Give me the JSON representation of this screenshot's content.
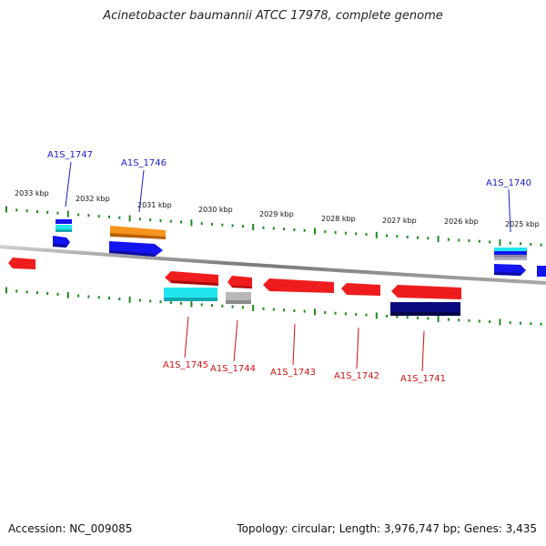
{
  "header": {
    "title": "Acinetobacter baumannii ATCC 17978, complete genome"
  },
  "footer": {
    "accession": "Accession: NC_009085",
    "summary": "Topology: circular; Length: 3,976,747 bp; Genes: 3,435"
  },
  "kbp_labels": [
    "2033 kbp",
    "2032 kbp",
    "2031 kbp",
    "2030 kbp",
    "2029 kbp",
    "2028 kbp",
    "2027 kbp",
    "2026 kbp",
    "2025 kbp"
  ],
  "genes_top": [
    "A1S_1747",
    "A1S_1746",
    "A1S_1740"
  ],
  "genes_bottom": [
    "A1S_1745",
    "A1S_1744",
    "A1S_1743",
    "A1S_1742",
    "A1S_1741"
  ],
  "colors": {
    "forward_label": "#1a1acc",
    "reverse_label": "#cc1111",
    "tick": "#1e8a1e",
    "backbone": "#8a8a8a",
    "red": "#ee1c1c",
    "blue": "#1414f0",
    "cyan": "#22e6ee",
    "orange": "#f7941d",
    "navy": "#0b0b80",
    "gray": "#b8b8b8"
  }
}
